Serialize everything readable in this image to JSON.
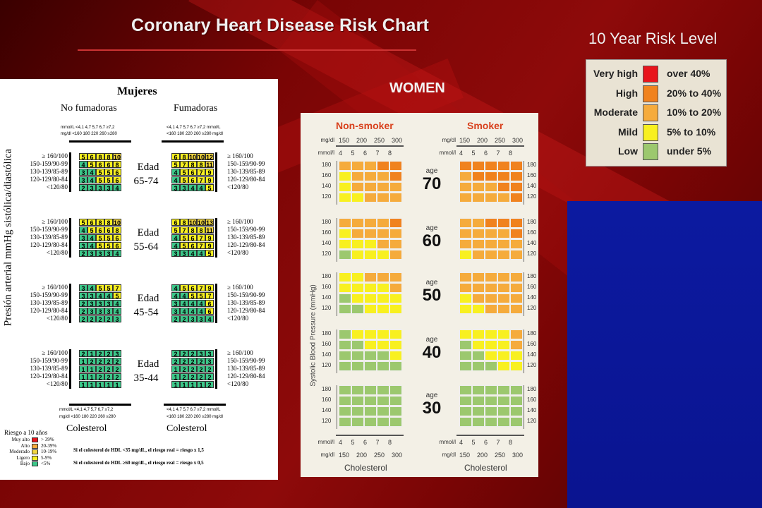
{
  "slide": {
    "title": "Coronary Heart Disease Risk Chart",
    "legend_title": "10 Year Risk Level",
    "women_label": "WOMEN"
  },
  "legend": [
    {
      "label": "Very high",
      "range": "over 40%",
      "color": "#e8141c"
    },
    {
      "label": "High",
      "range": "20% to 40%",
      "color": "#f0821e"
    },
    {
      "label": "Moderate",
      "range": "10% to 20%",
      "color": "#f5ab3c"
    },
    {
      "label": "Mild",
      "range": "5% to 10%",
      "color": "#f8f020"
    },
    {
      "label": "Low",
      "range": "under 5%",
      "color": "#9cc86e"
    }
  ],
  "left_chart": {
    "title": "Mujeres",
    "col_nonsmoker": "No fumadoras",
    "col_smoker": "Fumadoras",
    "ylabel": "Presión arterial mmHg sistólica/diastólica",
    "chol_mmol_label": "mmol/L",
    "chol_mgdl_label": "mg/dl",
    "chol_mmol_bands": [
      "<4,1",
      "4,7",
      "5,7",
      "6,7",
      "≥7,2"
    ],
    "chol_mgdl_bands": [
      "<160",
      "180",
      "220",
      "260",
      "≥280"
    ],
    "bp_bands": [
      "≥ 160/100",
      "150-159/90-99",
      "130-139/85-89",
      "120-129/80-84",
      "<120/80"
    ],
    "xlabel": "Colesterol",
    "risk_legend_title": "Riesgo a 10 años",
    "risk_legend": [
      {
        "label": "Muy alto",
        "range": "> 39%",
        "color": "#e8141c"
      },
      {
        "label": "Alto",
        "range": "20-39%",
        "color": "#f5ab3c"
      },
      {
        "label": "Moderado",
        "range": "10-19%",
        "color": "#f2d640"
      },
      {
        "label": "Ligero",
        "range": "5-9%",
        "color": "#f8f020"
      },
      {
        "label": "Bajo",
        "range": "<5%",
        "color": "#3cc88a"
      }
    ],
    "note1": "Si el colesterol de HDL <35 mg/dL, el riesgo real = riesgo x 1,5",
    "note2": "Si el colesterol de HDL ≥60 mg/dL, el riesgo real = riesgo x 0,5"
  },
  "chart_data": [
    {
      "type": "heatmap",
      "title": "Mujeres",
      "xlabel": "Colesterol",
      "ylabel": "Presión arterial mmHg sistólica/diastólica",
      "x_categories": [
        "<160",
        "180",
        "220",
        "260",
        "≥280"
      ],
      "y_categories": [
        "≥ 160/100",
        "150-159/90-99",
        "130-139/85-89",
        "120-129/80-84",
        "<120/80"
      ],
      "groups": [
        {
          "age": "Edad 65-74",
          "nonsmoker": [
            [
              5,
              6,
              8,
              8,
              10
            ],
            [
              4,
              5,
              6,
              6,
              8
            ],
            [
              3,
              4,
              5,
              5,
              6
            ],
            [
              3,
              4,
              5,
              5,
              6
            ],
            [
              2,
              3,
              3,
              3,
              4
            ]
          ],
          "smoker": [
            [
              6,
              8,
              10,
              10,
              12
            ],
            [
              5,
              7,
              8,
              8,
              11
            ],
            [
              4,
              5,
              6,
              7,
              9
            ],
            [
              4,
              5,
              6,
              7,
              9
            ],
            [
              3,
              3,
              4,
              4,
              5
            ]
          ]
        },
        {
          "age": "Edad 55-64",
          "nonsmoker": [
            [
              5,
              6,
              8,
              8,
              10
            ],
            [
              4,
              5,
              6,
              6,
              8
            ],
            [
              3,
              4,
              5,
              5,
              6
            ],
            [
              3,
              4,
              5,
              5,
              6
            ],
            [
              2,
              3,
              3,
              3,
              4
            ]
          ],
          "smoker": [
            [
              6,
              8,
              10,
              10,
              13
            ],
            [
              5,
              7,
              8,
              8,
              11
            ],
            [
              4,
              5,
              6,
              7,
              9
            ],
            [
              4,
              5,
              6,
              7,
              9
            ],
            [
              3,
              3,
              4,
              4,
              5
            ]
          ]
        },
        {
          "age": "Edad 45-54",
          "nonsmoker": [
            [
              3,
              4,
              5,
              5,
              7
            ],
            [
              3,
              3,
              4,
              4,
              5
            ],
            [
              2,
              3,
              3,
              3,
              4
            ],
            [
              2,
              3,
              3,
              3,
              4
            ],
            [
              2,
              2,
              2,
              2,
              3
            ]
          ],
          "smoker": [
            [
              4,
              5,
              6,
              7,
              9
            ],
            [
              4,
              4,
              5,
              5,
              7
            ],
            [
              3,
              4,
              4,
              4,
              6
            ],
            [
              3,
              4,
              4,
              4,
              6
            ],
            [
              2,
              2,
              3,
              3,
              4
            ]
          ]
        },
        {
          "age": "Edad 35-44",
          "nonsmoker": [
            [
              2,
              1,
              2,
              2,
              3
            ],
            [
              1,
              2,
              2,
              2,
              2
            ],
            [
              1,
              1,
              2,
              2,
              2
            ],
            [
              1,
              1,
              2,
              2,
              2
            ],
            [
              1,
              1,
              1,
              1,
              1
            ]
          ],
          "smoker": [
            [
              2,
              2,
              2,
              3,
              3
            ],
            [
              2,
              2,
              2,
              2,
              3
            ],
            [
              1,
              2,
              2,
              2,
              2
            ],
            [
              1,
              2,
              2,
              2,
              2
            ],
            [
              1,
              1,
              1,
              1,
              2
            ]
          ]
        }
      ]
    },
    {
      "type": "heatmap",
      "title": "WOMEN",
      "xlabel": "Cholesterol",
      "ylabel": "Systolic Blood Pressure (mmHg)",
      "x_mmol": [
        "4",
        "5",
        "6",
        "7",
        "8"
      ],
      "x_mgdl": [
        "150",
        "200",
        "250",
        "300"
      ],
      "x_mmol_label": "mmol/l",
      "x_mgdl_label": "mg/dl",
      "y_ticks": [
        "180",
        "160",
        "140",
        "120"
      ],
      "col_nonsmoker": "Non-smoker",
      "col_smoker": "Smoker",
      "age_prefix": "age",
      "levels": {
        "1": "#9cc86e",
        "2": "#f8f020",
        "3": "#f5ab3c",
        "4": "#f0821e",
        "5": "#e8141c"
      },
      "groups": [
        {
          "age": "70",
          "nonsmoker": [
            [
              3,
              3,
              3,
              4,
              4
            ],
            [
              2,
              3,
              3,
              3,
              4
            ],
            [
              2,
              3,
              3,
              3,
              3
            ],
            [
              2,
              2,
              3,
              3,
              3
            ]
          ],
          "smoker": [
            [
              4,
              4,
              4,
              4,
              4
            ],
            [
              3,
              4,
              4,
              4,
              4
            ],
            [
              3,
              3,
              3,
              4,
              4
            ],
            [
              3,
              3,
              3,
              3,
              4
            ]
          ]
        },
        {
          "age": "60",
          "nonsmoker": [
            [
              3,
              3,
              3,
              3,
              4
            ],
            [
              2,
              3,
              3,
              3,
              3
            ],
            [
              2,
              2,
              2,
              3,
              3
            ],
            [
              1,
              2,
              2,
              2,
              3
            ]
          ],
          "smoker": [
            [
              3,
              3,
              4,
              4,
              4
            ],
            [
              3,
              3,
              3,
              3,
              4
            ],
            [
              3,
              3,
              3,
              3,
              3
            ],
            [
              2,
              3,
              3,
              3,
              3
            ]
          ]
        },
        {
          "age": "50",
          "nonsmoker": [
            [
              2,
              2,
              3,
              3,
              3
            ],
            [
              2,
              2,
              2,
              2,
              3
            ],
            [
              1,
              2,
              2,
              2,
              2
            ],
            [
              1,
              1,
              2,
              2,
              2
            ]
          ],
          "smoker": [
            [
              3,
              3,
              3,
              3,
              3
            ],
            [
              3,
              3,
              3,
              3,
              3
            ],
            [
              2,
              3,
              3,
              3,
              3
            ],
            [
              2,
              2,
              3,
              3,
              3
            ]
          ]
        },
        {
          "age": "40",
          "nonsmoker": [
            [
              1,
              2,
              2,
              2,
              2
            ],
            [
              1,
              1,
              2,
              2,
              2
            ],
            [
              1,
              1,
              1,
              1,
              2
            ],
            [
              1,
              1,
              1,
              1,
              1
            ]
          ],
          "smoker": [
            [
              2,
              2,
              2,
              2,
              3
            ],
            [
              1,
              2,
              2,
              2,
              3
            ],
            [
              1,
              1,
              2,
              2,
              2
            ],
            [
              1,
              1,
              1,
              2,
              2
            ]
          ]
        },
        {
          "age": "30",
          "nonsmoker": [
            [
              1,
              1,
              1,
              1,
              1
            ],
            [
              1,
              1,
              1,
              1,
              1
            ],
            [
              1,
              1,
              1,
              1,
              1
            ],
            [
              1,
              1,
              1,
              1,
              1
            ]
          ],
          "smoker": [
            [
              1,
              1,
              1,
              1,
              1
            ],
            [
              1,
              1,
              1,
              1,
              1
            ],
            [
              1,
              1,
              1,
              1,
              1
            ],
            [
              1,
              1,
              1,
              1,
              1
            ]
          ]
        }
      ]
    }
  ]
}
